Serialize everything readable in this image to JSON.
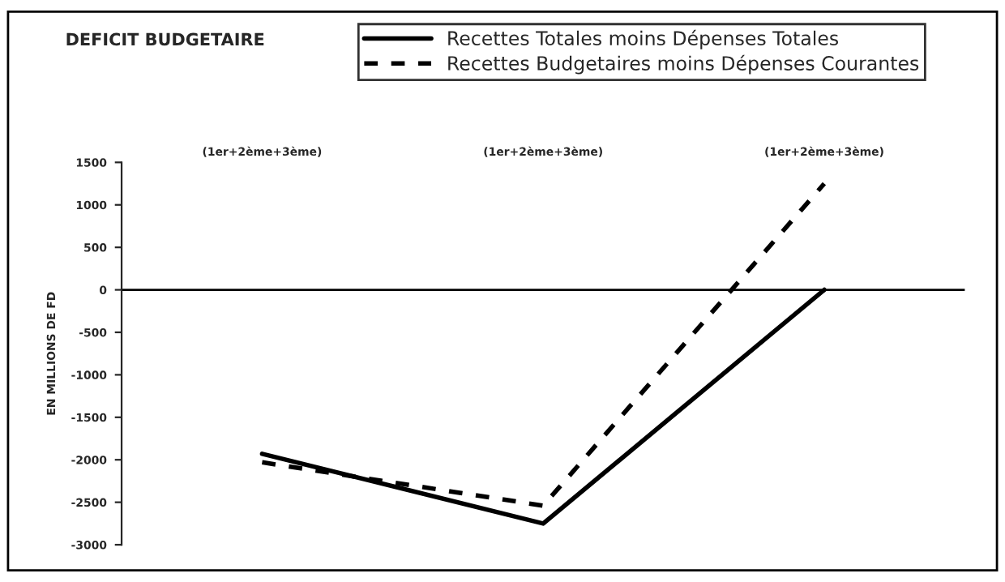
{
  "chart_data": {
    "type": "line",
    "title": "DEFICIT BUDGETAIRE",
    "ylabel": "EN MILLIONS DE FD",
    "categories": [
      "(1er+2ème+3ème)",
      "(1er+2ème+3ème)",
      "(1er+2ème+3ème)"
    ],
    "series": [
      {
        "name": "Recettes Totales moins Dépenses Totales",
        "color": "#000000",
        "line_style": "solid",
        "values": [
          -1930,
          -2750,
          0
        ]
      },
      {
        "name": "Recettes Budgetaires moins Dépenses Courantes",
        "color": "#000000",
        "line_style": "dashed",
        "values": [
          -2030,
          -2540,
          1250
        ]
      }
    ],
    "ylim": [
      -3000,
      1500
    ],
    "yticks": [
      -3000,
      -2500,
      -2000,
      -1500,
      -1000,
      -500,
      0,
      500,
      1000,
      1500
    ],
    "ref_lines": [
      {
        "axis": "y",
        "value": 0,
        "color": "#000000",
        "line_style": "solid"
      }
    ],
    "grid": false,
    "legend": "top right",
    "marker": "none"
  }
}
